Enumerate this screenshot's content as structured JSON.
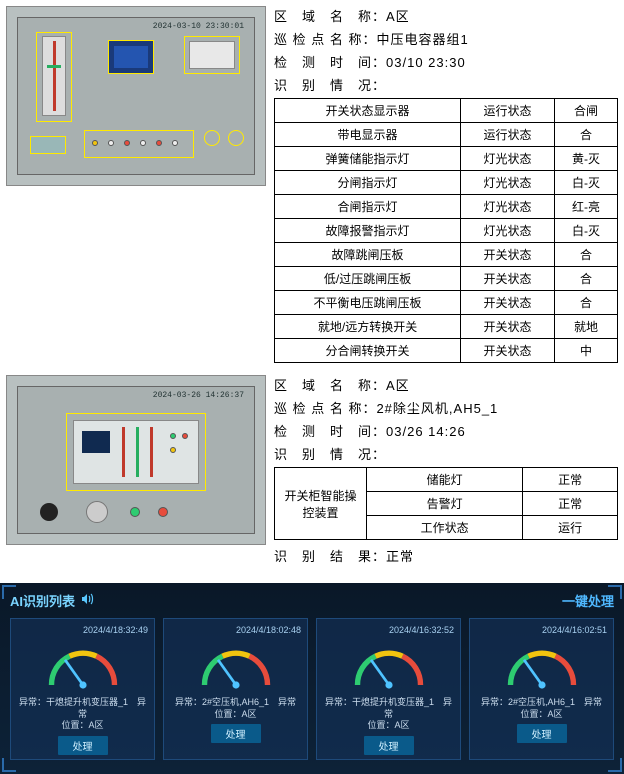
{
  "section1": {
    "panel_ts": "2024-03-10 23:30:01",
    "info": {
      "area_label": "区　域　名　称：",
      "area_value": "A区",
      "point_label": "巡 检 点 名 称：",
      "point_value": "中压电容器组1",
      "time_label": "检　测　时　间：",
      "time_value": "03/10 23:30",
      "status_label": "识　别　情　况："
    },
    "table": {
      "rows": [
        [
          "开关状态显示器",
          "运行状态",
          "合闸"
        ],
        [
          "带电显示器",
          "运行状态",
          "合"
        ],
        [
          "弹簧储能指示灯",
          "灯光状态",
          "黄-灭"
        ],
        [
          "分闸指示灯",
          "灯光状态",
          "白-灭"
        ],
        [
          "合闸指示灯",
          "灯光状态",
          "红-亮"
        ],
        [
          "故障报警指示灯",
          "灯光状态",
          "白-灭"
        ],
        [
          "故障跳闸压板",
          "开关状态",
          "合"
        ],
        [
          "低/过压跳闸压板",
          "开关状态",
          "合"
        ],
        [
          "不平衡电压跳闸压板",
          "开关状态",
          "合"
        ],
        [
          "就地/远方转换开关",
          "开关状态",
          "就地"
        ],
        [
          "分合闸转换开关",
          "开关状态",
          "中"
        ]
      ]
    }
  },
  "section2": {
    "panel_ts": "2024-03-26 14:26:37",
    "info": {
      "area_label": "区　域　名　称：",
      "area_value": "A区",
      "point_label": "巡 检 点 名 称：",
      "point_value": "2#除尘风机,AH5_1",
      "time_label": "检　测　时　间：",
      "time_value": "03/26 14:26",
      "status_label": "识　别　情　况："
    },
    "table": {
      "rowspan_label": "开关柜智能操控装置",
      "rows": [
        [
          "储能灯",
          "正常"
        ],
        [
          "告警灯",
          "正常"
        ],
        [
          "工作状态",
          "运行"
        ]
      ]
    },
    "result_label": "识　别　结　果：",
    "result_value": "正常"
  },
  "ai": {
    "title": "AI识别列表",
    "one_click": "一键处理",
    "gauge_colors": {
      "arc1": "#2ecc71",
      "arc2": "#f1c40f",
      "arc3": "#e74c3c",
      "needle": "#4fc3ff"
    },
    "cards": [
      {
        "ts": "2024/4/18:32:49",
        "line1": "异常：干熄提升机变压器_1　异常",
        "line2": "位置：A区",
        "btn": "处理"
      },
      {
        "ts": "2024/4/18:02:48",
        "line1": "异常：2#空压机,AH6_1　异常",
        "line2": "位置：A区",
        "btn": "处理"
      },
      {
        "ts": "2024/4/16:32:52",
        "line1": "异常：干熄提升机变压器_1　异常",
        "line2": "位置：A区",
        "btn": "处理"
      },
      {
        "ts": "2024/4/16:02:51",
        "line1": "异常：2#空压机,AH6_1　异常",
        "line2": "位置：A区",
        "btn": "处理"
      }
    ]
  }
}
